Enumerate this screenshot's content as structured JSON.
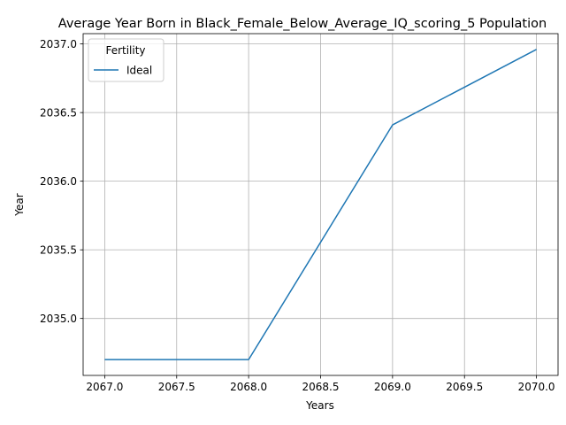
{
  "chart_data": {
    "type": "line",
    "title": "Average Year Born in Black_Female_Below_Average_IQ_scoring_5 Population",
    "xlabel": "Years",
    "ylabel": "Year",
    "x": [
      2067,
      2068,
      2069,
      2070
    ],
    "series": [
      {
        "name": "Ideal",
        "values": [
          2034.7,
          2034.7,
          2036.41,
          2036.96
        ],
        "color": "#1f77b4"
      }
    ],
    "xlim": [
      2066.85,
      2070.15
    ],
    "ylim": [
      2034.585,
      2037.075
    ],
    "xticks": [
      "2067.0",
      "2067.5",
      "2068.0",
      "2068.5",
      "2069.0",
      "2069.5",
      "2070.0"
    ],
    "xtick_values": [
      2067.0,
      2067.5,
      2068.0,
      2068.5,
      2069.0,
      2069.5,
      2070.0
    ],
    "yticks": [
      "2035.0",
      "2035.5",
      "2036.0",
      "2036.5",
      "2037.0"
    ],
    "ytick_values": [
      2035.0,
      2035.5,
      2036.0,
      2036.5,
      2037.0
    ],
    "grid": true,
    "legend": {
      "title": "Fertility",
      "position": "upper-left"
    }
  }
}
